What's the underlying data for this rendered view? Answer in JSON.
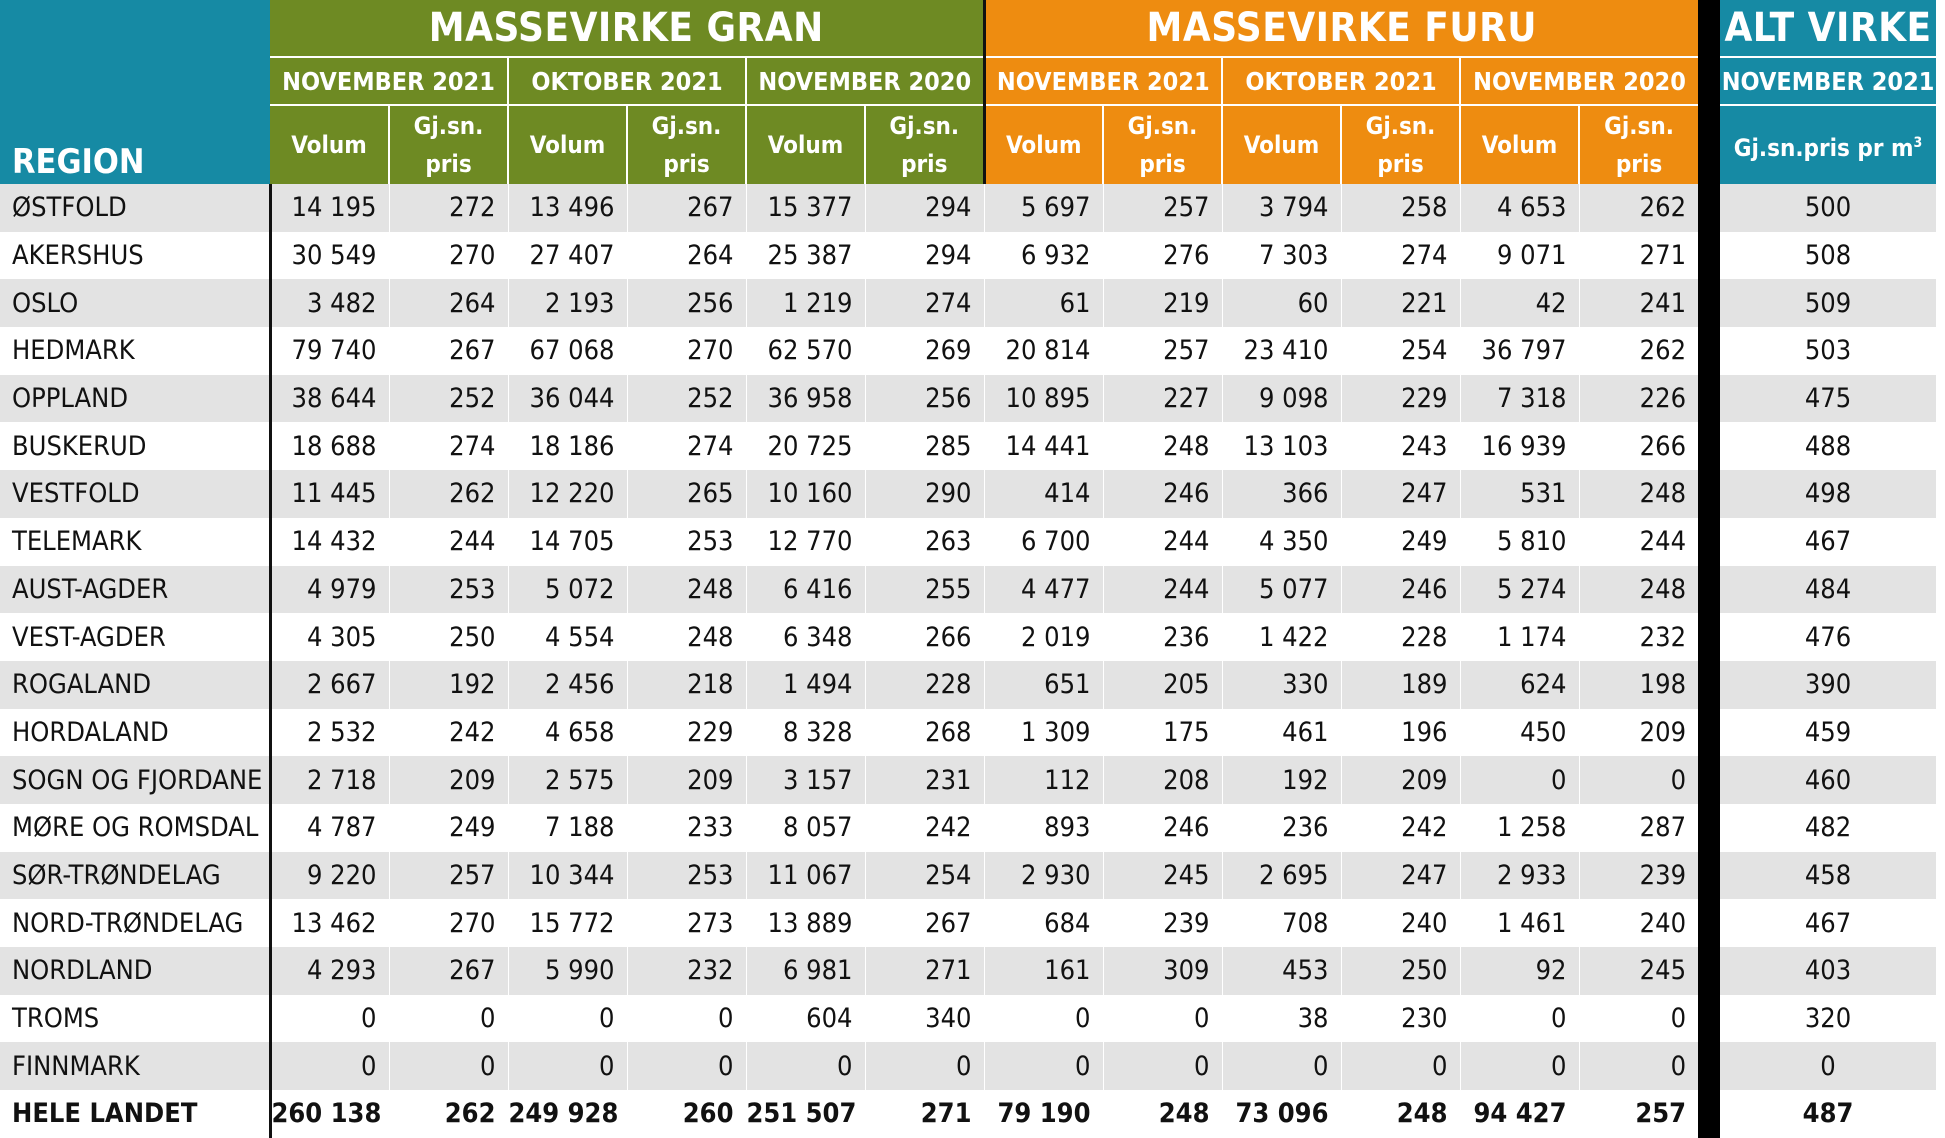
{
  "headers": {
    "region": "REGION",
    "gran_title": "MASSEVIRKE GRAN",
    "furu_title": "MASSEVIRKE FURU",
    "alt_title": "ALT VIRKE",
    "periods": [
      "NOVEMBER 2021",
      "OKTOBER 2021",
      "NOVEMBER 2020"
    ],
    "alt_period": "NOVEMBER 2021",
    "volum": "Volum",
    "pris_line1": "Gj.sn.",
    "pris_line2": "pris",
    "alt_sub": "Gj.sn.pris pr m",
    "alt_sub_sup": "3"
  },
  "columns": [
    "Gran Nov 2021 Volum",
    "Gran Nov 2021 Gj.sn. pris",
    "Gran Okt 2021 Volum",
    "Gran Okt 2021 Gj.sn. pris",
    "Gran Nov 2020 Volum",
    "Gran Nov 2020 Gj.sn. pris",
    "Furu Nov 2021 Volum",
    "Furu Nov 2021 Gj.sn. pris",
    "Furu Okt 2021 Volum",
    "Furu Okt 2021 Gj.sn. pris",
    "Furu Nov 2020 Volum",
    "Furu Nov 2020 Gj.sn. pris",
    "Alt virke Nov 2021 Gj.sn.pris pr m3"
  ],
  "rows": [
    {
      "region": "ØSTFOLD",
      "values": [
        "14 195",
        "272",
        "13 496",
        "267",
        "15 377",
        "294",
        "5 697",
        "257",
        "3 794",
        "258",
        "4 653",
        "262",
        "500"
      ]
    },
    {
      "region": "AKERSHUS",
      "values": [
        "30 549",
        "270",
        "27 407",
        "264",
        "25 387",
        "294",
        "6 932",
        "276",
        "7 303",
        "274",
        "9 071",
        "271",
        "508"
      ]
    },
    {
      "region": "OSLO",
      "values": [
        "3 482",
        "264",
        "2 193",
        "256",
        "1 219",
        "274",
        "61",
        "219",
        "60",
        "221",
        "42",
        "241",
        "509"
      ]
    },
    {
      "region": "HEDMARK",
      "values": [
        "79 740",
        "267",
        "67 068",
        "270",
        "62 570",
        "269",
        "20 814",
        "257",
        "23 410",
        "254",
        "36 797",
        "262",
        "503"
      ]
    },
    {
      "region": "OPPLAND",
      "values": [
        "38 644",
        "252",
        "36 044",
        "252",
        "36 958",
        "256",
        "10 895",
        "227",
        "9 098",
        "229",
        "7 318",
        "226",
        "475"
      ]
    },
    {
      "region": "BUSKERUD",
      "values": [
        "18 688",
        "274",
        "18 186",
        "274",
        "20 725",
        "285",
        "14 441",
        "248",
        "13 103",
        "243",
        "16 939",
        "266",
        "488"
      ]
    },
    {
      "region": "VESTFOLD",
      "values": [
        "11 445",
        "262",
        "12 220",
        "265",
        "10 160",
        "290",
        "414",
        "246",
        "366",
        "247",
        "531",
        "248",
        "498"
      ]
    },
    {
      "region": "TELEMARK",
      "values": [
        "14 432",
        "244",
        "14 705",
        "253",
        "12 770",
        "263",
        "6 700",
        "244",
        "4 350",
        "249",
        "5 810",
        "244",
        "467"
      ]
    },
    {
      "region": "AUST-AGDER",
      "values": [
        "4 979",
        "253",
        "5 072",
        "248",
        "6 416",
        "255",
        "4 477",
        "244",
        "5 077",
        "246",
        "5 274",
        "248",
        "484"
      ]
    },
    {
      "region": "VEST-AGDER",
      "values": [
        "4 305",
        "250",
        "4 554",
        "248",
        "6 348",
        "266",
        "2 019",
        "236",
        "1 422",
        "228",
        "1 174",
        "232",
        "476"
      ]
    },
    {
      "region": "ROGALAND",
      "values": [
        "2 667",
        "192",
        "2 456",
        "218",
        "1 494",
        "228",
        "651",
        "205",
        "330",
        "189",
        "624",
        "198",
        "390"
      ]
    },
    {
      "region": "HORDALAND",
      "values": [
        "2 532",
        "242",
        "4 658",
        "229",
        "8 328",
        "268",
        "1 309",
        "175",
        "461",
        "196",
        "450",
        "209",
        "459"
      ]
    },
    {
      "region": "SOGN OG FJORDANE",
      "values": [
        "2 718",
        "209",
        "2 575",
        "209",
        "3 157",
        "231",
        "112",
        "208",
        "192",
        "209",
        "0",
        "0",
        "460"
      ]
    },
    {
      "region": "MØRE OG ROMSDAL",
      "values": [
        "4 787",
        "249",
        "7 188",
        "233",
        "8 057",
        "242",
        "893",
        "246",
        "236",
        "242",
        "1 258",
        "287",
        "482"
      ]
    },
    {
      "region": "SØR-TRØNDELAG",
      "values": [
        "9 220",
        "257",
        "10 344",
        "253",
        "11 067",
        "254",
        "2 930",
        "245",
        "2 695",
        "247",
        "2 933",
        "239",
        "458"
      ]
    },
    {
      "region": "NORD-TRØNDELAG",
      "values": [
        "13 462",
        "270",
        "15 772",
        "273",
        "13 889",
        "267",
        "684",
        "239",
        "708",
        "240",
        "1 461",
        "240",
        "467"
      ]
    },
    {
      "region": "NORDLAND",
      "values": [
        "4 293",
        "267",
        "5 990",
        "232",
        "6 981",
        "271",
        "161",
        "309",
        "453",
        "250",
        "92",
        "245",
        "403"
      ]
    },
    {
      "region": "TROMS",
      "values": [
        "0",
        "0",
        "0",
        "0",
        "604",
        "340",
        "0",
        "0",
        "38",
        "230",
        "0",
        "0",
        "320"
      ]
    },
    {
      "region": "FINNMARK",
      "values": [
        "0",
        "0",
        "0",
        "0",
        "0",
        "0",
        "0",
        "0",
        "0",
        "0",
        "0",
        "0",
        "0"
      ]
    }
  ],
  "total": {
    "region": "HELE LANDET",
    "values": [
      "260 138",
      "262",
      "249 928",
      "260",
      "251 507",
      "271",
      "79 190",
      "248",
      "73 096",
      "248",
      "94 427",
      "257",
      "487"
    ]
  }
}
